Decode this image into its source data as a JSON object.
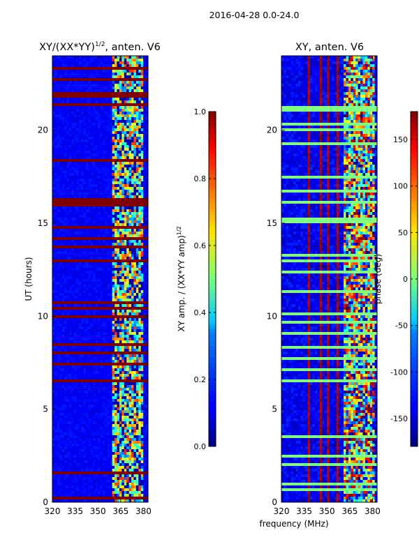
{
  "figure": {
    "suptitle": "2016-04-28 0.0-24.0",
    "xlabel_shared": "frequency (MHz)"
  },
  "chart_data": [
    {
      "type": "heatmap",
      "title_main": "XY/(XX*YY)",
      "title_sup": "1/2",
      "title_tail": ", anten. V6",
      "xlabel": "",
      "ylabel": "UT (hours)",
      "xlim": [
        320,
        383
      ],
      "ylim": [
        0,
        24
      ],
      "xticks": [
        "320",
        "335",
        "350",
        "365",
        "380"
      ],
      "xtick_values": [
        320,
        335,
        350,
        365,
        380
      ],
      "yticks": [
        "0",
        "5",
        "10",
        "15",
        "20"
      ],
      "ytick_values": [
        0,
        5,
        10,
        15,
        20
      ],
      "colorbar": {
        "label_main": "XY amp. / (XX*YY amp)",
        "label_sup": "1/2",
        "range": [
          0.0,
          1.0
        ],
        "ticks": [
          "0.0",
          "0.2",
          "0.4",
          "0.6",
          "0.8",
          "1.0"
        ],
        "tick_values": [
          0.0,
          0.2,
          0.4,
          0.6,
          0.8,
          1.0
        ]
      },
      "value_summary": {
        "base_value": 0.12,
        "high_band_mhz": [
          359,
          380
        ],
        "high_band_range": [
          0.2,
          0.85
        ],
        "flagged_value": 1.0,
        "flagged_hours": [
          [
            1.45,
            1.65
          ],
          [
            15.85,
            16.25
          ],
          [
            21.7,
            22.05
          ],
          [
            22.6,
            22.8
          ],
          [
            8.4,
            8.6
          ],
          [
            13.6,
            13.8
          ]
        ]
      }
    },
    {
      "type": "heatmap",
      "title_main": "XY, anten. V6",
      "xlabel": "frequency (MHz)",
      "ylabel": "",
      "xlim": [
        320,
        383
      ],
      "ylim": [
        0,
        24
      ],
      "xticks": [
        "320",
        "335",
        "350",
        "365",
        "380"
      ],
      "xtick_values": [
        320,
        335,
        350,
        365,
        380
      ],
      "yticks": [
        "0",
        "5",
        "10",
        "15",
        "20"
      ],
      "ytick_values": [
        0,
        5,
        10,
        15,
        20
      ],
      "colorbar": {
        "label_main": "phase (deg)",
        "range": [
          -180,
          180
        ],
        "ticks": [
          "-150",
          "-100",
          "-50",
          "0",
          "50",
          "100",
          "150"
        ],
        "tick_values": [
          -150,
          -100,
          -50,
          0,
          50,
          100,
          150
        ]
      },
      "value_summary": {
        "base_value": -140,
        "phase_stripes_mhz": [
          338,
          346,
          351,
          357
        ],
        "high_band_mhz": [
          361,
          381
        ],
        "flagged_value": 0,
        "flagged_hours": [
          [
            1.9,
            2.0
          ],
          [
            16.1,
            16.2
          ],
          [
            20.0,
            20.1
          ],
          [
            9.0,
            9.1
          ],
          [
            17.4,
            17.5
          ]
        ]
      }
    }
  ]
}
